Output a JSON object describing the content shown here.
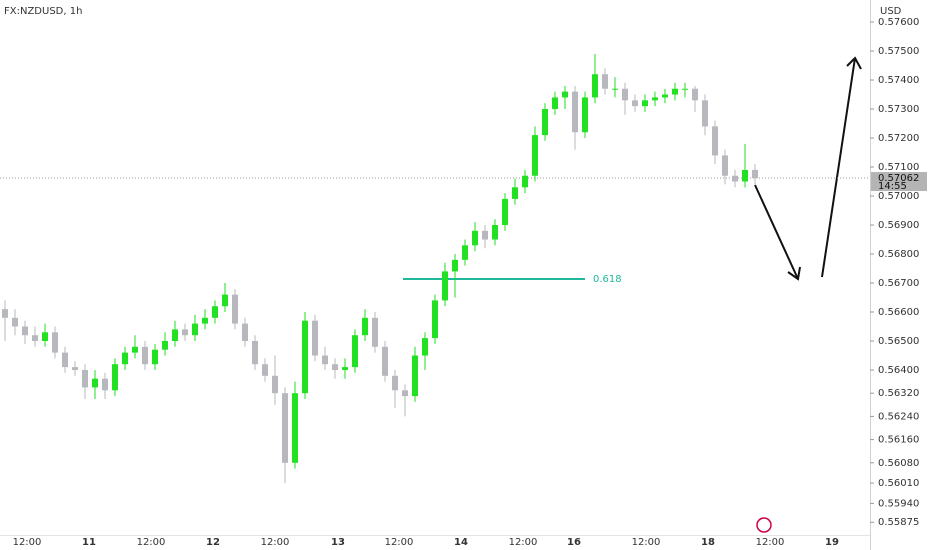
{
  "chart_data": {
    "type": "candlestick",
    "title": "FX:NZDUSD, 1h",
    "y_axis_label": "USD",
    "up_color": "#22e022",
    "down_color": "#b6b8be",
    "ylim": [
      0.55831,
      0.57676
    ],
    "yticks": [
      {
        "value": 0.576,
        "label": "0.57600"
      },
      {
        "value": 0.575,
        "label": "0.57500"
      },
      {
        "value": 0.574,
        "label": "0.57400"
      },
      {
        "value": 0.573,
        "label": "0.57300"
      },
      {
        "value": 0.572,
        "label": "0.57200"
      },
      {
        "value": 0.571,
        "label": "0.57100"
      },
      {
        "value": 0.57,
        "label": "0.57000"
      },
      {
        "value": 0.569,
        "label": "0.56900"
      },
      {
        "value": 0.568,
        "label": "0.56800"
      },
      {
        "value": 0.567,
        "label": "0.56700"
      },
      {
        "value": 0.566,
        "label": "0.56600"
      },
      {
        "value": 0.565,
        "label": "0.56500"
      },
      {
        "value": 0.564,
        "label": "0.56400"
      },
      {
        "value": 0.5632,
        "label": "0.56320"
      },
      {
        "value": 0.5624,
        "label": "0.56240"
      },
      {
        "value": 0.5616,
        "label": "0.56160"
      },
      {
        "value": 0.5608,
        "label": "0.56080"
      },
      {
        "value": 0.5601,
        "label": "0.56010"
      },
      {
        "value": 0.5594,
        "label": "0.55940"
      },
      {
        "value": 0.55875,
        "label": "0.55875"
      }
    ],
    "x_labels": [
      "12:00",
      "11",
      "12:00",
      "12",
      "12:00",
      "13",
      "12:00",
      "14",
      "12:00",
      "16",
      "12:00",
      "18",
      "12:00",
      "19"
    ],
    "fib_level": {
      "value": 0.56714,
      "label": "0.618"
    },
    "last_price": {
      "value": 0.57062,
      "label": "0.57062"
    },
    "countdown": "14:55",
    "candles": [
      [
        0.5661,
        0.5664,
        0.565,
        0.5658
      ],
      [
        0.5658,
        0.5661,
        0.5652,
        0.5655
      ],
      [
        0.5655,
        0.5657,
        0.5649,
        0.5652
      ],
      [
        0.5652,
        0.5655,
        0.5648,
        0.565
      ],
      [
        0.565,
        0.5656,
        0.5648,
        0.5653
      ],
      [
        0.5653,
        0.5655,
        0.5644,
        0.5646
      ],
      [
        0.5646,
        0.5648,
        0.5639,
        0.5641
      ],
      [
        0.5641,
        0.5643,
        0.5638,
        0.564
      ],
      [
        0.564,
        0.5642,
        0.563,
        0.5634
      ],
      [
        0.5634,
        0.564,
        0.563,
        0.5637
      ],
      [
        0.5637,
        0.5639,
        0.563,
        0.5633
      ],
      [
        0.5633,
        0.5644,
        0.5631,
        0.5642
      ],
      [
        0.5642,
        0.5648,
        0.564,
        0.5646
      ],
      [
        0.5646,
        0.5652,
        0.5644,
        0.5648
      ],
      [
        0.5648,
        0.565,
        0.564,
        0.5642
      ],
      [
        0.5642,
        0.5649,
        0.564,
        0.5647
      ],
      [
        0.5647,
        0.5653,
        0.5645,
        0.565
      ],
      [
        0.565,
        0.5657,
        0.5648,
        0.5654
      ],
      [
        0.5654,
        0.5656,
        0.565,
        0.5652
      ],
      [
        0.5652,
        0.5659,
        0.565,
        0.5656
      ],
      [
        0.5656,
        0.5661,
        0.5654,
        0.5658
      ],
      [
        0.5658,
        0.5664,
        0.5656,
        0.5662
      ],
      [
        0.5662,
        0.567,
        0.566,
        0.5666
      ],
      [
        0.5666,
        0.5668,
        0.5654,
        0.5656
      ],
      [
        0.5656,
        0.5658,
        0.5648,
        0.565
      ],
      [
        0.565,
        0.5652,
        0.564,
        0.5642
      ],
      [
        0.5642,
        0.5644,
        0.5636,
        0.5638
      ],
      [
        0.5638,
        0.5645,
        0.5628,
        0.5632
      ],
      [
        0.5632,
        0.5634,
        0.5601,
        0.5608
      ],
      [
        0.5608,
        0.5636,
        0.5606,
        0.5632
      ],
      [
        0.5632,
        0.566,
        0.563,
        0.5657
      ],
      [
        0.5657,
        0.5659,
        0.5643,
        0.5645
      ],
      [
        0.5645,
        0.5648,
        0.564,
        0.5642
      ],
      [
        0.5642,
        0.5644,
        0.5637,
        0.564
      ],
      [
        0.564,
        0.5644,
        0.5637,
        0.5641
      ],
      [
        0.5641,
        0.5654,
        0.5639,
        0.5652
      ],
      [
        0.5652,
        0.5661,
        0.565,
        0.5658
      ],
      [
        0.5658,
        0.566,
        0.5646,
        0.5648
      ],
      [
        0.5648,
        0.565,
        0.5636,
        0.5638
      ],
      [
        0.5638,
        0.564,
        0.5627,
        0.5633
      ],
      [
        0.5633,
        0.5635,
        0.5624,
        0.5631
      ],
      [
        0.5631,
        0.5648,
        0.5629,
        0.5645
      ],
      [
        0.5645,
        0.5653,
        0.564,
        0.5651
      ],
      [
        0.5651,
        0.5666,
        0.5649,
        0.5664
      ],
      [
        0.5664,
        0.5677,
        0.5662,
        0.5674
      ],
      [
        0.5674,
        0.568,
        0.5665,
        0.5678
      ],
      [
        0.5678,
        0.5685,
        0.5676,
        0.5683
      ],
      [
        0.5683,
        0.5691,
        0.5681,
        0.5688
      ],
      [
        0.5688,
        0.569,
        0.5682,
        0.5685
      ],
      [
        0.5685,
        0.5692,
        0.5683,
        0.569
      ],
      [
        0.569,
        0.5701,
        0.5688,
        0.5699
      ],
      [
        0.5699,
        0.5706,
        0.5697,
        0.5703
      ],
      [
        0.5703,
        0.5709,
        0.5701,
        0.5707
      ],
      [
        0.5707,
        0.5724,
        0.5705,
        0.5721
      ],
      [
        0.5721,
        0.5732,
        0.5719,
        0.573
      ],
      [
        0.573,
        0.5736,
        0.5728,
        0.5734
      ],
      [
        0.5734,
        0.5738,
        0.573,
        0.5736
      ],
      [
        0.5736,
        0.5738,
        0.5716,
        0.5722
      ],
      [
        0.5722,
        0.5736,
        0.572,
        0.5734
      ],
      [
        0.5734,
        0.5749,
        0.5732,
        0.5742
      ],
      [
        0.5742,
        0.5744,
        0.5735,
        0.5737
      ],
      [
        0.5737,
        0.5741,
        0.5734,
        0.5737
      ],
      [
        0.5737,
        0.5739,
        0.5728,
        0.5733
      ],
      [
        0.5733,
        0.5735,
        0.5729,
        0.5731
      ],
      [
        0.5731,
        0.5735,
        0.5729,
        0.5733
      ],
      [
        0.5733,
        0.5736,
        0.5731,
        0.5734
      ],
      [
        0.5734,
        0.5737,
        0.5732,
        0.5735
      ],
      [
        0.5735,
        0.5739,
        0.5733,
        0.5737
      ],
      [
        0.5737,
        0.5739,
        0.5734,
        0.5737
      ],
      [
        0.5737,
        0.5738,
        0.5729,
        0.5733
      ],
      [
        0.5733,
        0.5735,
        0.5721,
        0.5724
      ],
      [
        0.5724,
        0.5726,
        0.5711,
        0.5714
      ],
      [
        0.5714,
        0.5716,
        0.5704,
        0.5707
      ],
      [
        0.5707,
        0.5709,
        0.5703,
        0.5705
      ],
      [
        0.5705,
        0.5718,
        0.5703,
        0.5709
      ],
      [
        0.5709,
        0.5711,
        0.5704,
        0.57062
      ]
    ]
  }
}
